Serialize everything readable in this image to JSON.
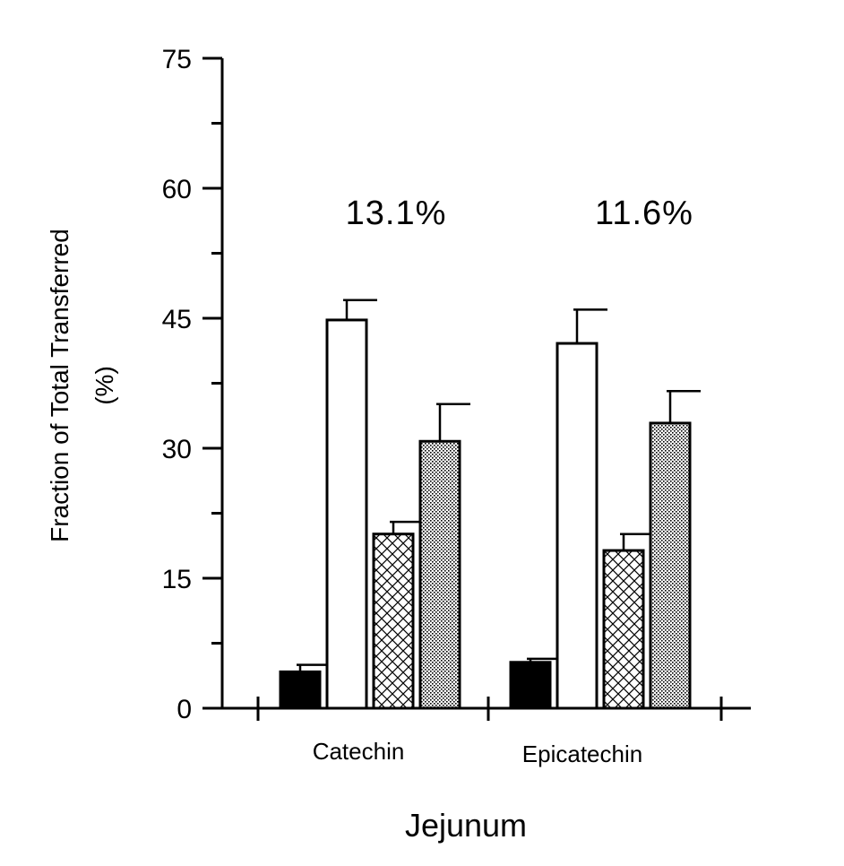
{
  "chart_data": {
    "type": "bar",
    "categories": [
      "Catechin",
      "Epicatechin"
    ],
    "series": [
      {
        "values": [
          4.2,
          5.3
        ],
        "errors": [
          0.8,
          0.4
        ],
        "pattern": "solid-black"
      },
      {
        "values": [
          44.8,
          42.1
        ],
        "errors": [
          2.3,
          3.9
        ],
        "pattern": "white"
      },
      {
        "values": [
          20.1,
          18.2
        ],
        "errors": [
          1.4,
          1.9
        ],
        "pattern": "crosshatch"
      },
      {
        "values": [
          30.8,
          32.9
        ],
        "errors": [
          4.3,
          3.7
        ],
        "pattern": "stipple"
      }
    ],
    "annotations": [
      "13.1%",
      "11.6%"
    ],
    "xlabel": "Jejunum",
    "ylabel_line1": "Fraction of Total Transferred",
    "ylabel_line2": "(%)",
    "ylim": [
      0,
      75
    ],
    "yticks": [
      "0",
      "15",
      "30",
      "45",
      "60",
      "75"
    ],
    "ytick_values": [
      0,
      15,
      30,
      45,
      60,
      75
    ],
    "grid": false,
    "colors": {
      "ink": "#000000",
      "background": "#ffffff"
    }
  }
}
